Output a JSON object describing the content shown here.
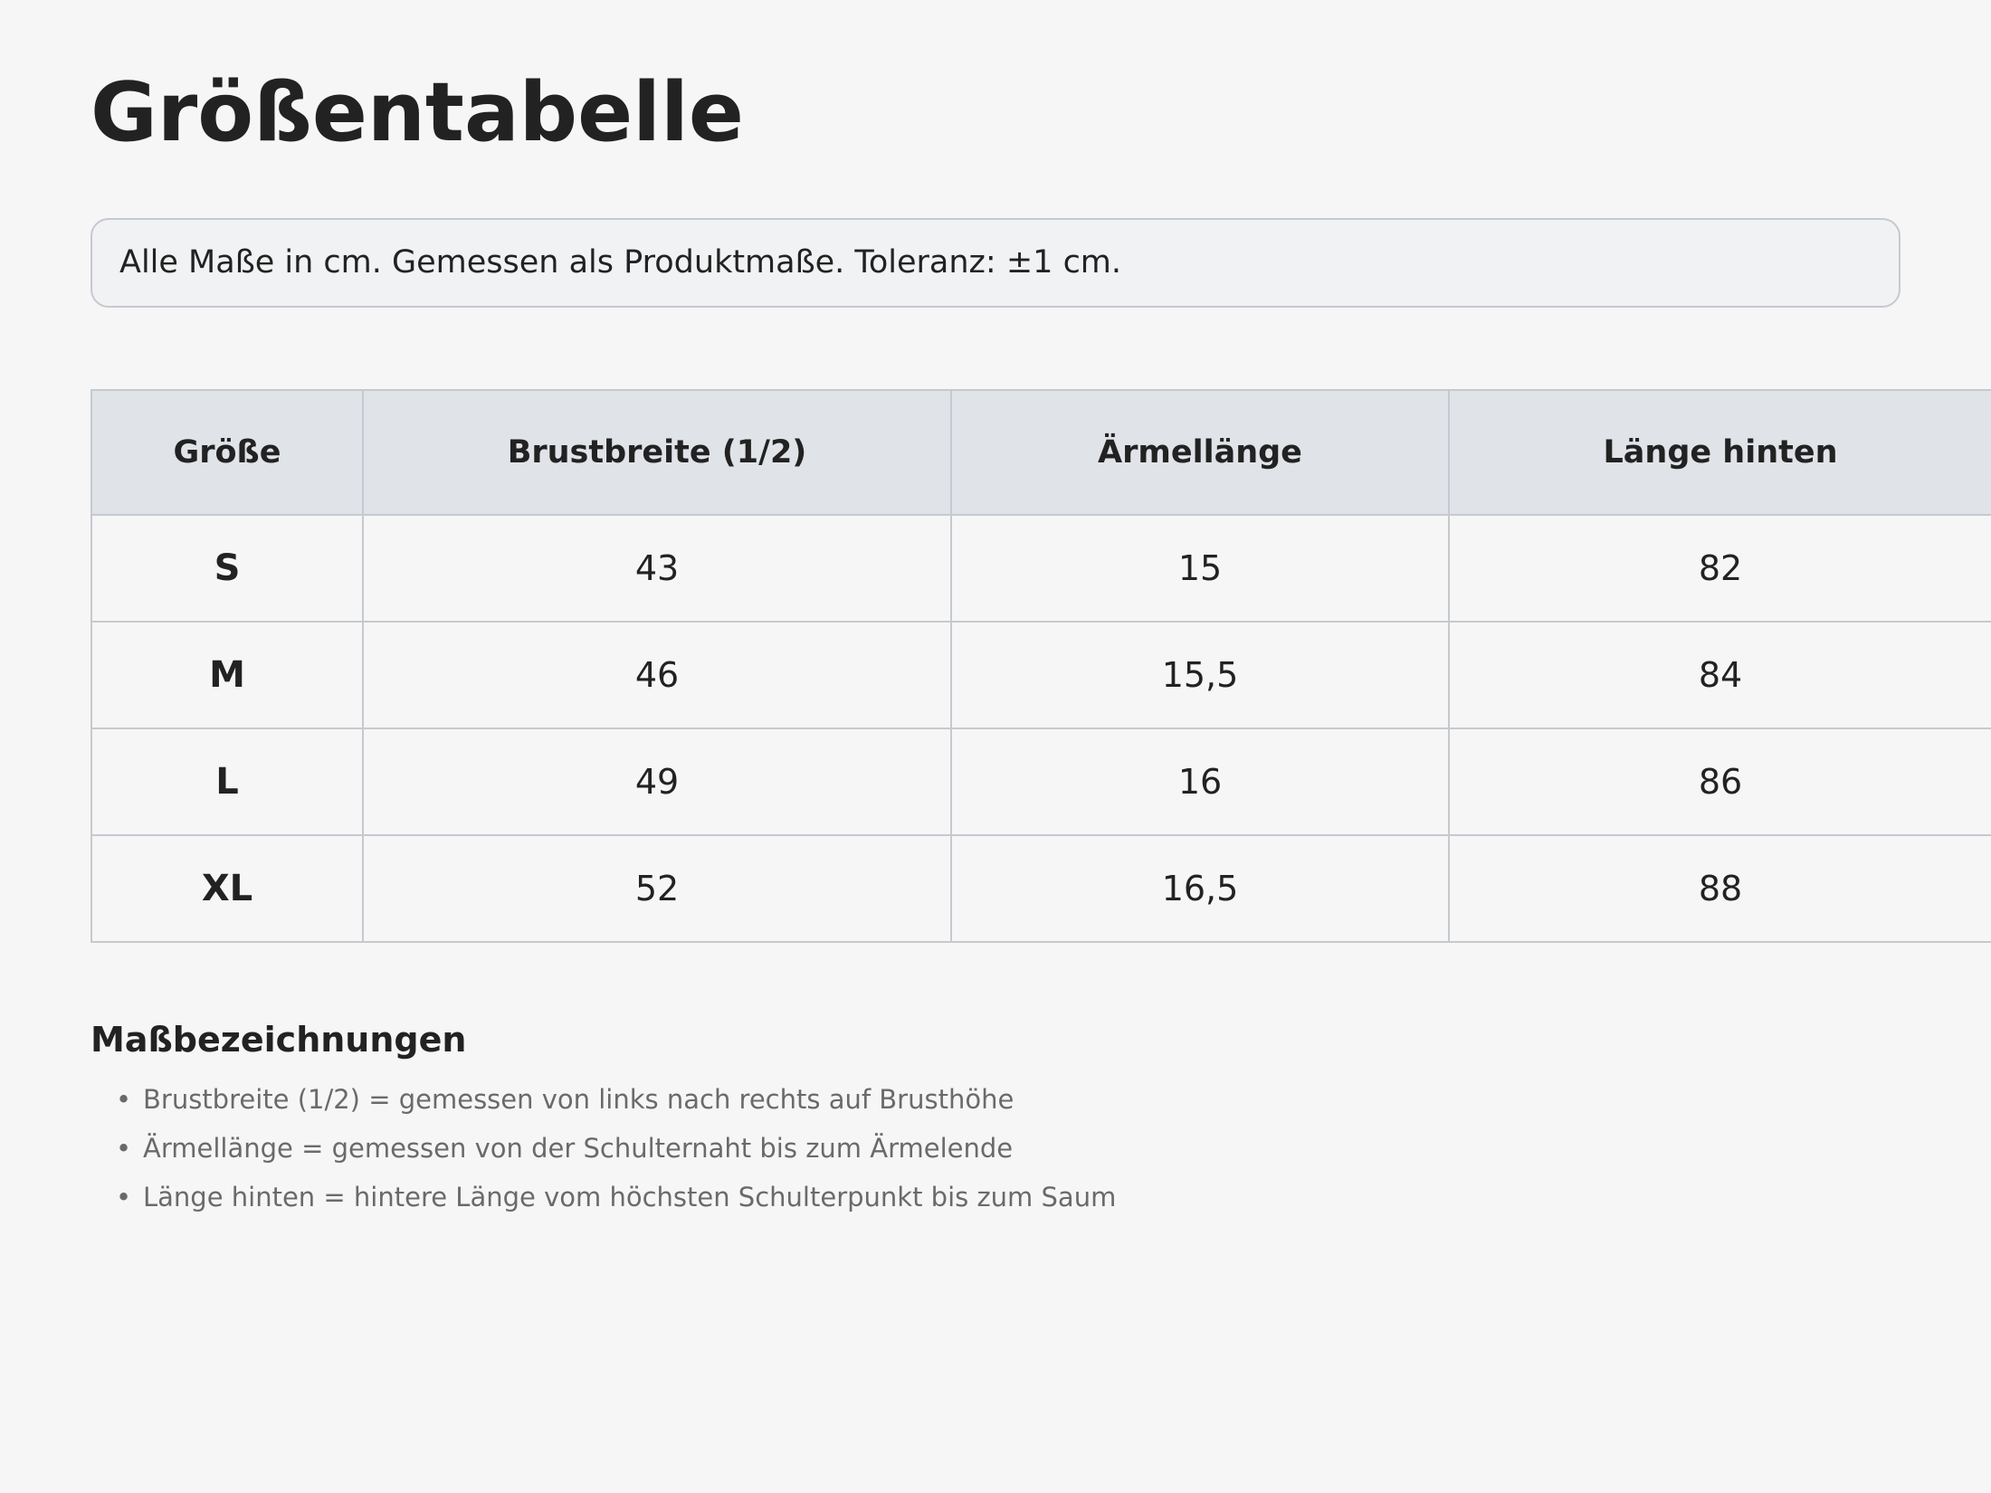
{
  "header": {
    "title": "Größentabelle"
  },
  "note": "Alle Maße in cm. Gemessen als Produktmaße. Toleranz: ±1 cm.",
  "table": {
    "columns": [
      "Größe",
      "Brustbreite (1/2)",
      "Ärmellänge",
      "Länge hinten"
    ],
    "rows": [
      [
        "S",
        "43",
        "15",
        "82"
      ],
      [
        "M",
        "46",
        "15,5",
        "84"
      ],
      [
        "L",
        "49",
        "16",
        "86"
      ],
      [
        "XL",
        "52",
        "16,5",
        "88"
      ]
    ]
  },
  "legend": {
    "title": "Maßbezeichnungen",
    "items": [
      "Brustbreite (1/2) = gemessen von links nach rechts auf Brusthöhe",
      "Ärmellänge = gemessen von der Schulternaht bis zum Ärmelende",
      "Länge hinten = hintere Länge vom höchsten Schulterpunkt bis zum Saum"
    ]
  }
}
